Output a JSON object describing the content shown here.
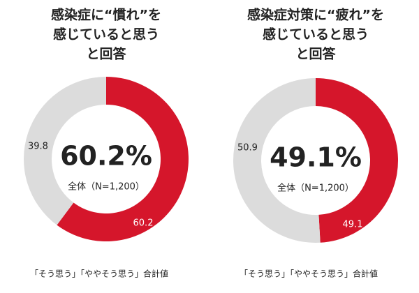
{
  "chart_data": [
    {
      "type": "donut",
      "title": [
        "感染症に“慣れ”を",
        "感じていると思う",
        "と回答"
      ],
      "values": [
        60.2,
        39.8
      ],
      "colors": [
        "#d5162b",
        "#dcdcdc"
      ],
      "center_value": "60.2%",
      "center_caption": "全体（N=1,200）",
      "note": "「そう思う」「ややそう思う」合計値"
    },
    {
      "type": "donut",
      "title": [
        "感染症対策に“疲れ”を",
        "感じていると思う",
        "と回答"
      ],
      "values": [
        49.1,
        50.9
      ],
      "colors": [
        "#d5162b",
        "#dcdcdc"
      ],
      "center_value": "49.1%",
      "center_caption": "全体（N=1,200）",
      "note": "「そう思う」「ややそう思う」合計値"
    }
  ]
}
